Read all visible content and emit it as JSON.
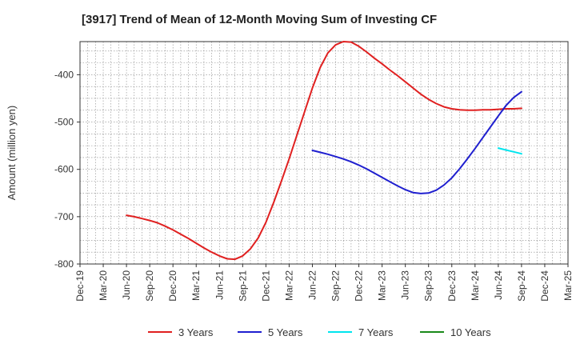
{
  "chart_data": {
    "type": "line",
    "title": "[3917]  Trend of Mean of 12-Month Moving Sum of Investing CF",
    "xlabel": "",
    "ylabel": "Amount (million yen)",
    "ylim": [
      -800,
      -330
    ],
    "y_ticks": [
      -800,
      -700,
      -600,
      -500,
      -400
    ],
    "x_ticks": [
      "Dec-19",
      "Mar-20",
      "Jun-20",
      "Sep-20",
      "Dec-20",
      "Mar-21",
      "Jun-21",
      "Sep-21",
      "Dec-21",
      "Mar-22",
      "Jun-22",
      "Sep-22",
      "Dec-22",
      "Mar-23",
      "Jun-23",
      "Sep-23",
      "Dec-23",
      "Mar-24",
      "Jun-24",
      "Sep-24",
      "Dec-24",
      "Mar-25"
    ],
    "grid": true,
    "legend_position": "bottom",
    "series": [
      {
        "name": "3 Years",
        "color": "#e02020",
        "points": [
          [
            "Jun-20",
            -697
          ],
          [
            "Jul-20",
            -700
          ],
          [
            "Aug-20",
            -704
          ],
          [
            "Sep-20",
            -708
          ],
          [
            "Oct-20",
            -713
          ],
          [
            "Nov-20",
            -720
          ],
          [
            "Dec-20",
            -728
          ],
          [
            "Jan-21",
            -737
          ],
          [
            "Feb-21",
            -746
          ],
          [
            "Mar-21",
            -756
          ],
          [
            "Apr-21",
            -766
          ],
          [
            "May-21",
            -775
          ],
          [
            "Jun-21",
            -783
          ],
          [
            "Jul-21",
            -789
          ],
          [
            "Aug-21",
            -790
          ],
          [
            "Sep-21",
            -783
          ],
          [
            "Oct-21",
            -768
          ],
          [
            "Nov-21",
            -745
          ],
          [
            "Dec-21",
            -712
          ],
          [
            "Jan-22",
            -670
          ],
          [
            "Feb-22",
            -625
          ],
          [
            "Mar-22",
            -578
          ],
          [
            "Apr-22",
            -528
          ],
          [
            "May-22",
            -478
          ],
          [
            "Jun-22",
            -428
          ],
          [
            "Jul-22",
            -385
          ],
          [
            "Aug-22",
            -354
          ],
          [
            "Sep-22",
            -337
          ],
          [
            "Oct-22",
            -330
          ],
          [
            "Nov-22",
            -331
          ],
          [
            "Dec-22",
            -340
          ],
          [
            "Jan-23",
            -352
          ],
          [
            "Feb-23",
            -365
          ],
          [
            "Mar-23",
            -377
          ],
          [
            "Apr-23",
            -390
          ],
          [
            "May-23",
            -402
          ],
          [
            "Jun-23",
            -415
          ],
          [
            "Jul-23",
            -428
          ],
          [
            "Aug-23",
            -441
          ],
          [
            "Sep-23",
            -452
          ],
          [
            "Oct-23",
            -461
          ],
          [
            "Nov-23",
            -468
          ],
          [
            "Dec-23",
            -472
          ],
          [
            "Jan-24",
            -474
          ],
          [
            "Feb-24",
            -475
          ],
          [
            "Mar-24",
            -475
          ],
          [
            "Apr-24",
            -474
          ],
          [
            "May-24",
            -474
          ],
          [
            "Jun-24",
            -473
          ],
          [
            "Jul-24",
            -472
          ],
          [
            "Aug-24",
            -472
          ],
          [
            "Sep-24",
            -471
          ]
        ]
      },
      {
        "name": "5 Years",
        "color": "#1f1fcf",
        "points": [
          [
            "Jun-22",
            -560
          ],
          [
            "Jul-22",
            -564
          ],
          [
            "Aug-22",
            -568
          ],
          [
            "Sep-22",
            -573
          ],
          [
            "Oct-22",
            -578
          ],
          [
            "Nov-22",
            -584
          ],
          [
            "Dec-22",
            -591
          ],
          [
            "Jan-23",
            -599
          ],
          [
            "Feb-23",
            -608
          ],
          [
            "Mar-23",
            -617
          ],
          [
            "Apr-23",
            -626
          ],
          [
            "May-23",
            -635
          ],
          [
            "Jun-23",
            -643
          ],
          [
            "Jul-23",
            -649
          ],
          [
            "Aug-23",
            -651
          ],
          [
            "Sep-23",
            -650
          ],
          [
            "Oct-23",
            -644
          ],
          [
            "Nov-23",
            -633
          ],
          [
            "Dec-23",
            -618
          ],
          [
            "Jan-24",
            -599
          ],
          [
            "Feb-24",
            -578
          ],
          [
            "Mar-24",
            -556
          ],
          [
            "Apr-24",
            -533
          ],
          [
            "May-24",
            -510
          ],
          [
            "Jun-24",
            -487
          ],
          [
            "Jul-24",
            -465
          ],
          [
            "Aug-24",
            -448
          ],
          [
            "Sep-24",
            -436
          ]
        ]
      },
      {
        "name": "7 Years",
        "color": "#00e5ee",
        "points": [
          [
            "Jun-24",
            -555
          ],
          [
            "Jul-24",
            -559
          ],
          [
            "Aug-24",
            -563
          ],
          [
            "Sep-24",
            -567
          ]
        ]
      },
      {
        "name": "10 Years",
        "color": "#1a8a1a",
        "points": []
      }
    ]
  }
}
